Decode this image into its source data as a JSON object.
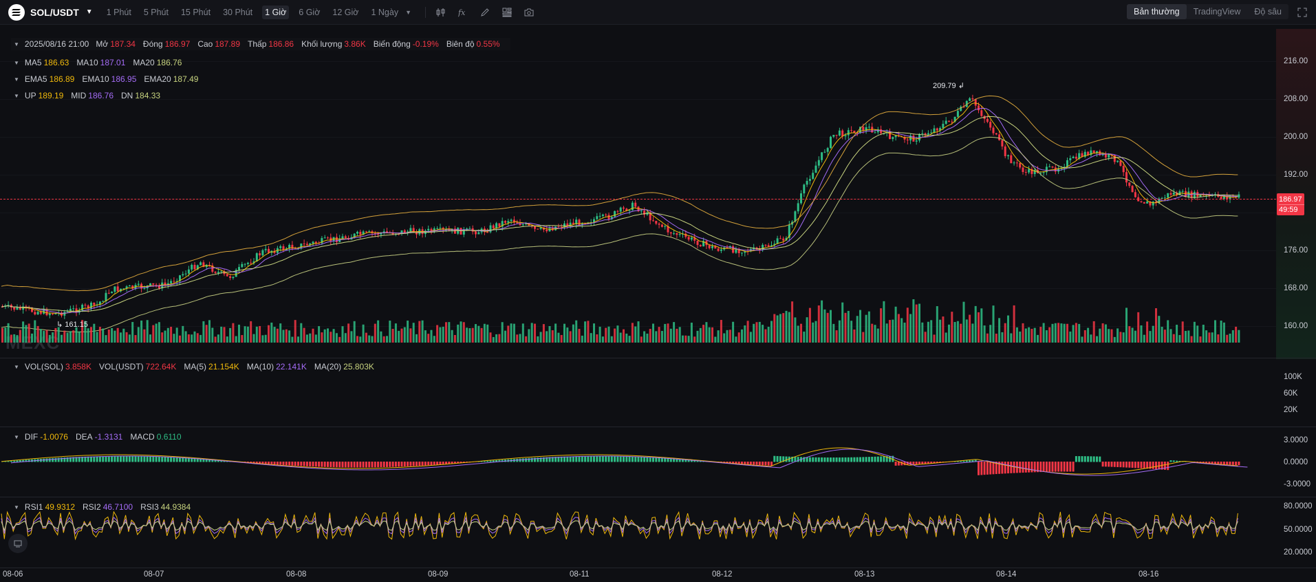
{
  "toolbar": {
    "pair": "SOL/USDT",
    "timeframes": [
      "1 Phút",
      "5 Phút",
      "15 Phút",
      "30 Phút",
      "1 Giờ",
      "6 Giờ",
      "12 Giờ",
      "1 Ngày"
    ],
    "active_timeframe": "1 Giờ",
    "views": [
      "Bản thường",
      "TradingView",
      "Độ sâu"
    ],
    "active_view": "Bản thường"
  },
  "ohlc": {
    "datetime": "2025/08/16 21:00",
    "open_label": "Mở",
    "open": "187.34",
    "close_label": "Đóng",
    "close": "186.97",
    "high_label": "Cao",
    "high": "187.89",
    "low_label": "Thấp",
    "low": "186.86",
    "volume_label": "Khối lượng",
    "volume": "3.86K",
    "change_label": "Biến động",
    "change": "-0.19%",
    "amplitude_label": "Biên độ",
    "amplitude": "0.55%"
  },
  "ma": {
    "ma5_label": "MA5",
    "ma5": "186.63",
    "ma10_label": "MA10",
    "ma10": "187.01",
    "ma20_label": "MA20",
    "ma20": "186.76"
  },
  "ema": {
    "ema5_label": "EMA5",
    "ema5": "186.89",
    "ema10_label": "EMA10",
    "ema10": "186.95",
    "ema20_label": "EMA20",
    "ema20": "187.49"
  },
  "boll": {
    "up_label": "UP",
    "up": "189.19",
    "mid_label": "MID",
    "mid": "186.76",
    "dn_label": "DN",
    "dn": "184.33"
  },
  "price_axis": [
    "216.00",
    "208.00",
    "200.00",
    "192.00",
    "176.00",
    "168.00",
    "160.00"
  ],
  "current_price": {
    "price": "186.97",
    "countdown": "49:59"
  },
  "extremes": {
    "high": "209.79",
    "low": "161.15"
  },
  "watermark": "MEXC",
  "volume": {
    "sol_label": "VOL(SOL)",
    "sol": "3.858K",
    "usdt_label": "VOL(USDT)",
    "usdt": "722.64K",
    "ma5_label": "MA(5)",
    "ma5": "21.154K",
    "ma10_label": "MA(10)",
    "ma10": "22.141K",
    "ma20_label": "MA(20)",
    "ma20": "25.803K",
    "axis": [
      "100K",
      "60K",
      "20K"
    ]
  },
  "macd": {
    "dif_label": "DIF",
    "dif": "-1.0076",
    "dea_label": "DEA",
    "dea": "-1.3131",
    "macd_label": "MACD",
    "macd": "0.6110",
    "axis": [
      "3.0000",
      "0.0000",
      "-3.0000"
    ]
  },
  "rsi": {
    "rsi1_label": "RSI1",
    "rsi1": "49.9312",
    "rsi2_label": "RSI2",
    "rsi2": "46.7100",
    "rsi3_label": "RSI3",
    "rsi3": "44.9384",
    "axis": [
      "80.0000",
      "50.0000",
      "20.0000"
    ]
  },
  "time_axis": [
    "08-06",
    "08-07",
    "08-08",
    "08-09",
    "08-11",
    "08-12",
    "08-13",
    "08-14",
    "08-16"
  ],
  "colors": {
    "up": "#2ebd85",
    "down": "#f23645",
    "ma5": "#f0b90b",
    "ma10": "#a46cf6",
    "ma20": "#c7d37f",
    "accent": "#f23645"
  }
}
